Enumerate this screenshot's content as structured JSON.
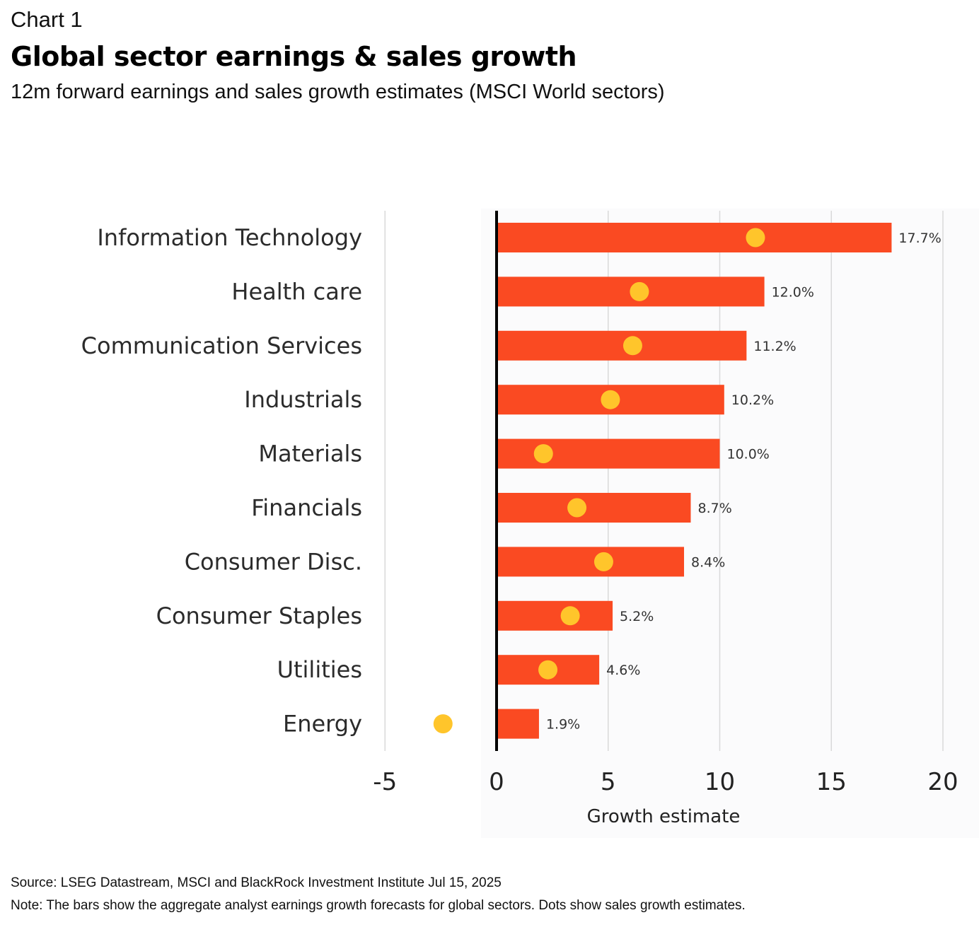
{
  "header": {
    "kicker": "Chart 1",
    "title": "Global sector earnings & sales growth",
    "subtitle": "12m forward earnings and sales growth estimates (MSCI World sectors)"
  },
  "footer": {
    "source": "Source: LSEG Datastream, MSCI and BlackRock Investment Institute Jul 15, 2025",
    "note": "Note: The bars show the aggregate analyst earnings growth forecasts for global sectors. Dots show sales growth estimates."
  },
  "colors": {
    "bar": "#FA4A22",
    "dot": "#FFC52B",
    "zero_line": "#000000",
    "grid": "#d9d9d9"
  },
  "chart_data": {
    "type": "bar",
    "orientation": "horizontal",
    "title": "Global sector earnings & sales growth",
    "subtitle": "12m forward earnings and sales growth estimates (MSCI World sectors)",
    "xlabel": "Growth estimate",
    "ylabel": "",
    "xlim": [
      -5,
      20
    ],
    "xticks": [
      -5,
      0,
      5,
      10,
      15,
      20
    ],
    "xtick_labels": [
      "-5",
      "0",
      "5",
      "10",
      "15",
      "20"
    ],
    "grid": true,
    "legend": "none",
    "categories": [
      "Information Technology",
      "Health care",
      "Communication Services",
      "Industrials",
      "Materials",
      "Financials",
      "Consumer Disc.",
      "Consumer Staples",
      "Utilities",
      "Energy"
    ],
    "series": [
      {
        "name": "Earnings growth forecast",
        "mark": "bar",
        "values": [
          17.7,
          12.0,
          11.2,
          10.2,
          10.0,
          8.7,
          8.4,
          5.2,
          4.6,
          1.9
        ],
        "data_labels": [
          "17.7%",
          "12.0%",
          "11.2%",
          "10.2%",
          "10.0%",
          "8.7%",
          "8.4%",
          "5.2%",
          "4.6%",
          "1.9%"
        ]
      },
      {
        "name": "Sales growth estimate",
        "mark": "dot",
        "values": [
          11.6,
          6.4,
          6.1,
          5.1,
          2.1,
          3.6,
          4.8,
          3.3,
          2.3,
          -2.4
        ]
      }
    ]
  }
}
